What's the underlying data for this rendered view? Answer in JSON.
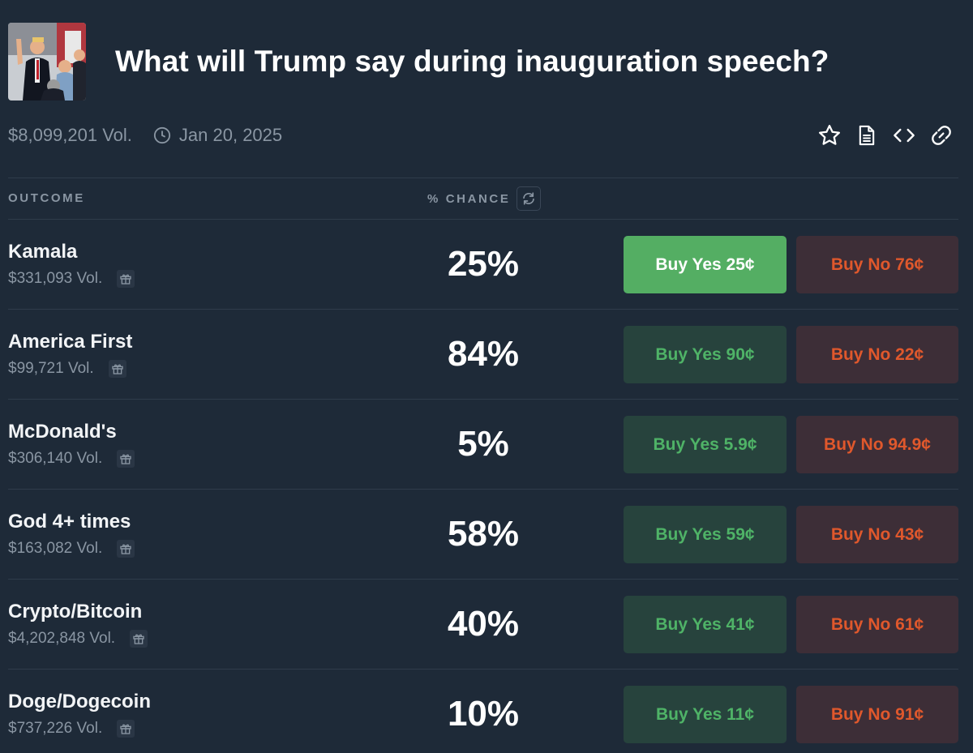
{
  "header": {
    "title": "What will Trump say during inauguration speech?",
    "volume": "$8,099,201 Vol.",
    "date": "Jan 20, 2025",
    "icons": [
      "clock-icon",
      "star-icon",
      "document-icon",
      "embed-code-icon",
      "link-icon"
    ]
  },
  "columns": {
    "outcome": "OUTCOME",
    "chance": "% CHANCE"
  },
  "colors": {
    "background": "#1e2a38",
    "yes_text": "#4fb367",
    "yes_bg": "#27433d",
    "yes_active_bg": "#54ae63",
    "no_text": "#e0582c",
    "no_bg": "#3d2e37"
  },
  "outcomes": [
    {
      "name": "Kamala",
      "volume": "$331,093 Vol.",
      "chance": "25%",
      "yes": "Buy Yes 25¢",
      "no": "Buy No 76¢"
    },
    {
      "name": "America First",
      "volume": "$99,721 Vol.",
      "chance": "84%",
      "yes": "Buy Yes 90¢",
      "no": "Buy No 22¢"
    },
    {
      "name": "McDonald's",
      "volume": "$306,140 Vol.",
      "chance": "5%",
      "yes": "Buy Yes 5.9¢",
      "no": "Buy No 94.9¢"
    },
    {
      "name": "God 4+ times",
      "volume": "$163,082 Vol.",
      "chance": "58%",
      "yes": "Buy Yes 59¢",
      "no": "Buy No 43¢"
    },
    {
      "name": "Crypto/Bitcoin",
      "volume": "$4,202,848 Vol.",
      "chance": "40%",
      "yes": "Buy Yes 41¢",
      "no": "Buy No 61¢"
    },
    {
      "name": "Doge/Dogecoin",
      "volume": "$737,226 Vol.",
      "chance": "10%",
      "yes": "Buy Yes 11¢",
      "no": "Buy No 91¢"
    }
  ]
}
